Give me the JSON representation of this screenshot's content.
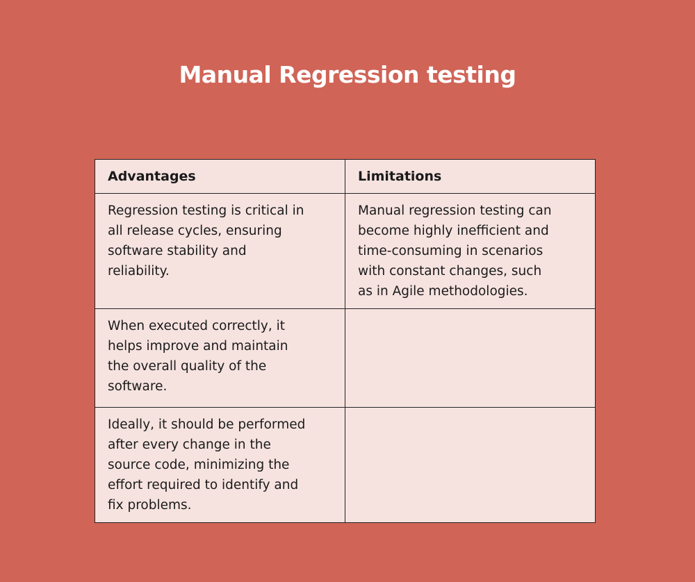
{
  "title": "Manual Regression testing",
  "table": {
    "headers": [
      "Advantages",
      "Limitations"
    ],
    "rows": [
      {
        "advantage": [
          "Regression testing is critical in",
          "all release cycles, ensuring",
          "software stability and",
          "reliability."
        ],
        "limitation": [
          "Manual regression testing can",
          "become highly inefficient and",
          "time-consuming in scenarios",
          "with constant changes, such",
          "as in Agile methodologies."
        ]
      },
      {
        "advantage": [
          "When executed correctly, it",
          "helps improve and maintain",
          "the overall quality of the",
          "software."
        ],
        "limitation": []
      },
      {
        "advantage": [
          "Ideally, it should be performed",
          "after every change in the",
          "source code, minimizing the",
          "effort required to identify and",
          "fix problems."
        ],
        "limitation": []
      }
    ]
  },
  "colors": {
    "background": "#D06457",
    "cell": "#F6E3E0",
    "border": "#222222"
  }
}
